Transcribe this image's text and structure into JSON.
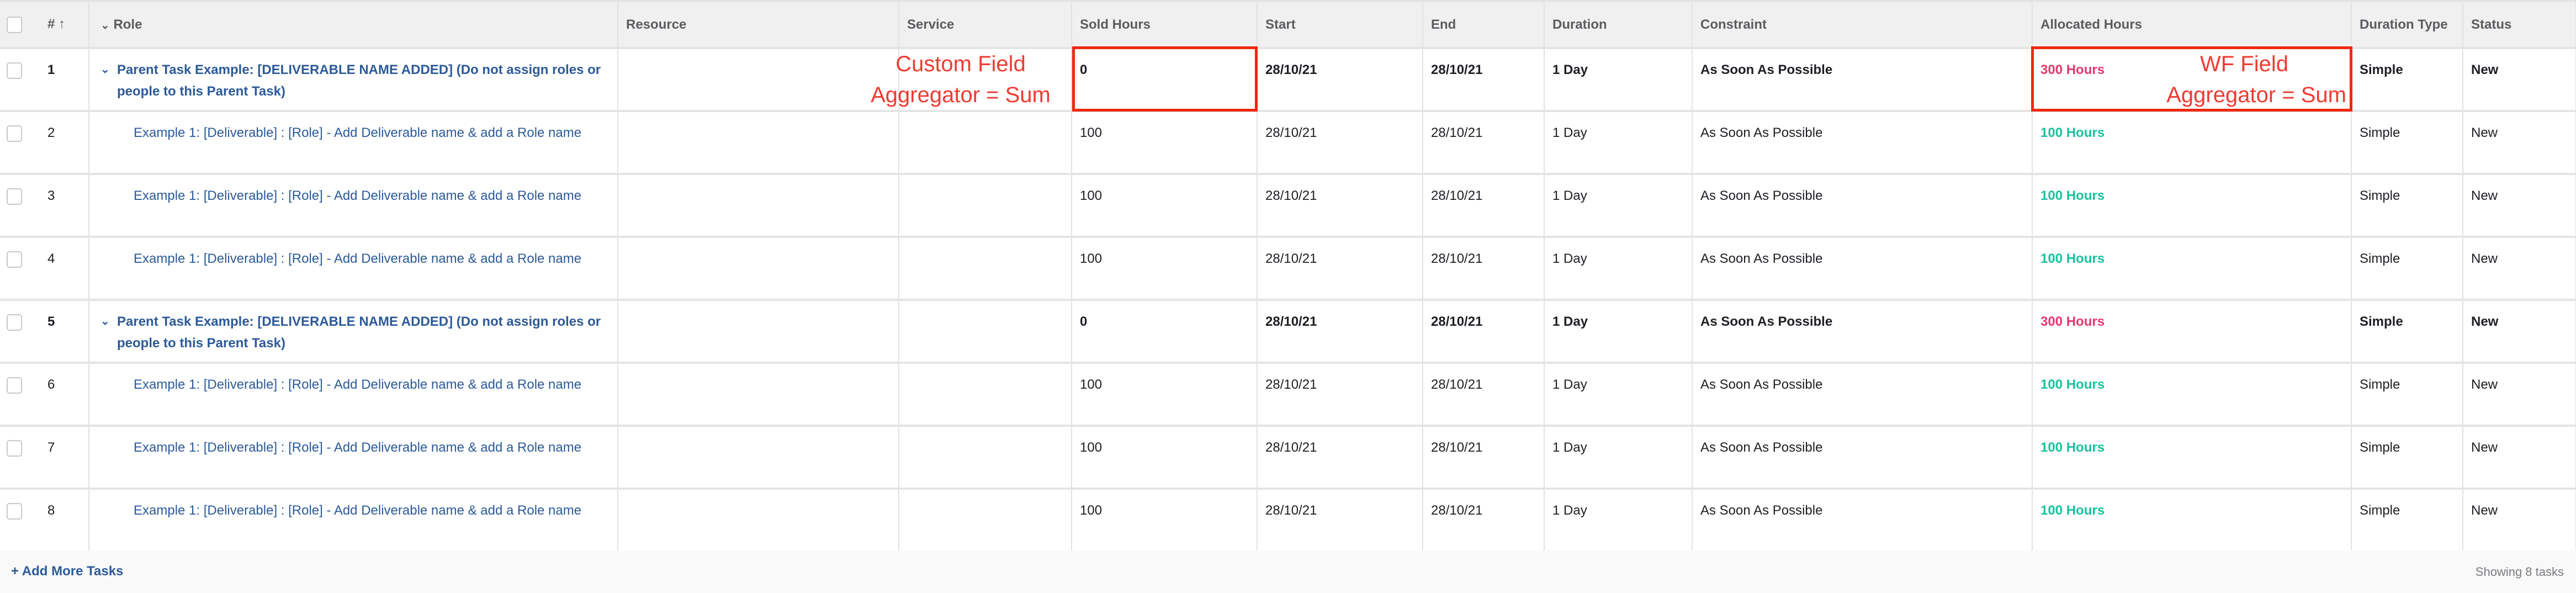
{
  "columns": [
    "# ↑",
    "Role",
    "Resource",
    "Service",
    "Sold Hours",
    "Start",
    "End",
    "Duration",
    "Constraint",
    "Allocated Hours",
    "Duration Type",
    "Status"
  ],
  "rows": [
    {
      "num": "1",
      "parent": true,
      "role": "Parent Task Example: [DELIVERABLE NAME ADDED] (Do not assign roles or people to this Parent Task)",
      "resource": "",
      "service": "",
      "sold": "0",
      "start": "28/10/21",
      "end": "28/10/21",
      "duration": "1 Day",
      "constraint": "As Soon As Possible",
      "allocated": "300 Hours",
      "dtype": "Simple",
      "status": "New"
    },
    {
      "num": "2",
      "parent": false,
      "role": "Example 1: [Deliverable] : [Role] - Add Deliverable name & add a Role name",
      "resource": "",
      "service": "",
      "sold": "100",
      "start": "28/10/21",
      "end": "28/10/21",
      "duration": "1 Day",
      "constraint": "As Soon As Possible",
      "allocated": "100 Hours",
      "dtype": "Simple",
      "status": "New"
    },
    {
      "num": "3",
      "parent": false,
      "role": "Example 1: [Deliverable] : [Role] - Add Deliverable name & add a Role name",
      "resource": "",
      "service": "",
      "sold": "100",
      "start": "28/10/21",
      "end": "28/10/21",
      "duration": "1 Day",
      "constraint": "As Soon As Possible",
      "allocated": "100 Hours",
      "dtype": "Simple",
      "status": "New"
    },
    {
      "num": "4",
      "parent": false,
      "role": "Example 1: [Deliverable] : [Role] - Add Deliverable name & add a Role name",
      "resource": "",
      "service": "",
      "sold": "100",
      "start": "28/10/21",
      "end": "28/10/21",
      "duration": "1 Day",
      "constraint": "As Soon As Possible",
      "allocated": "100 Hours",
      "dtype": "Simple",
      "status": "New"
    },
    {
      "num": "5",
      "parent": true,
      "role": "Parent Task Example: [DELIVERABLE NAME ADDED] (Do not assign roles or people to this Parent Task)",
      "resource": "",
      "service": "",
      "sold": "0",
      "start": "28/10/21",
      "end": "28/10/21",
      "duration": "1 Day",
      "constraint": "As Soon As Possible",
      "allocated": "300 Hours",
      "dtype": "Simple",
      "status": "New"
    },
    {
      "num": "6",
      "parent": false,
      "role": "Example 1: [Deliverable] : [Role] - Add Deliverable name & add a Role name",
      "resource": "",
      "service": "",
      "sold": "100",
      "start": "28/10/21",
      "end": "28/10/21",
      "duration": "1 Day",
      "constraint": "As Soon As Possible",
      "allocated": "100 Hours",
      "dtype": "Simple",
      "status": "New"
    },
    {
      "num": "7",
      "parent": false,
      "role": "Example 1: [Deliverable] : [Role] - Add Deliverable name & add a Role name",
      "resource": "",
      "service": "",
      "sold": "100",
      "start": "28/10/21",
      "end": "28/10/21",
      "duration": "1 Day",
      "constraint": "As Soon As Possible",
      "allocated": "100 Hours",
      "dtype": "Simple",
      "status": "New"
    },
    {
      "num": "8",
      "parent": false,
      "role": "Example 1: [Deliverable] : [Role] - Add Deliverable name & add a Role name",
      "resource": "",
      "service": "",
      "sold": "100",
      "start": "28/10/21",
      "end": "28/10/21",
      "duration": "1 Day",
      "constraint": "As Soon As Possible",
      "allocated": "100 Hours",
      "dtype": "Simple",
      "status": "New"
    }
  ],
  "footer": {
    "add_label": "+ Add More Tasks",
    "showing": "Showing 8 tasks"
  },
  "annotations": {
    "custom_field": [
      "Custom Field",
      "Aggregator = Sum"
    ],
    "wf_field": [
      "WF Field",
      "Aggregator = Sum"
    ]
  },
  "colors": {
    "link": "#2c5a98",
    "over_allocated": "#e8376e",
    "allocated_ok": "#16c39f",
    "annotation": "#f0280f",
    "header_bg": "#f0f0f0"
  },
  "icons": {
    "row_expand": "chevron-down-icon",
    "sort": "arrow-up-icon"
  }
}
